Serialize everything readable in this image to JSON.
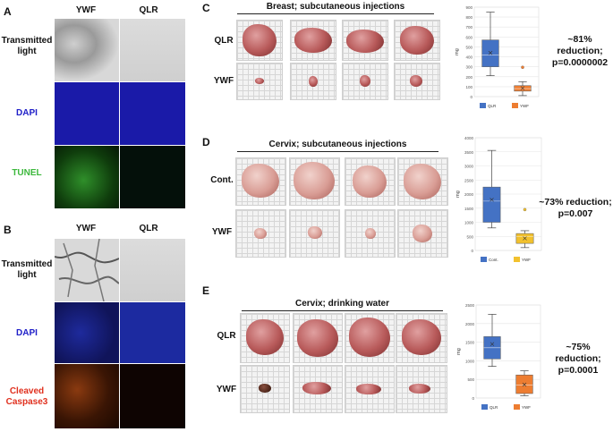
{
  "panelA": {
    "label": "A",
    "columns": [
      "YWF",
      "QLR"
    ],
    "rows": [
      {
        "label_lines": [
          "Transmitted",
          "light"
        ],
        "color": "#000000"
      },
      {
        "label_lines": [
          "DAPI"
        ],
        "color": "#2020c8"
      },
      {
        "label_lines": [
          "TUNEL"
        ],
        "color": "#3cb83c"
      }
    ]
  },
  "panelB": {
    "label": "B",
    "columns": [
      "YWF",
      "QLR"
    ],
    "rows": [
      {
        "label_lines": [
          "Transmitted",
          "light"
        ],
        "color": "#000000"
      },
      {
        "label_lines": [
          "DAPI"
        ],
        "color": "#2020c8"
      },
      {
        "label_lines": [
          "Cleaved",
          "Caspase3"
        ],
        "color": "#e0301e"
      }
    ]
  },
  "panelC": {
    "label": "C",
    "title": "Breast; subcutaneous injections",
    "row_labels": [
      "QLR",
      "YWF"
    ],
    "stat_lines": [
      "~81% reduction;",
      "p=0.0000002"
    ]
  },
  "panelD": {
    "label": "D",
    "title": "Cervix; subcutaneous injections",
    "row_labels": [
      "Cont.",
      "YWF"
    ],
    "stat_lines": [
      "~73% reduction;",
      "p=0.007"
    ]
  },
  "panelE": {
    "label": "E",
    "title": "Cervix; drinking water",
    "row_labels": [
      "QLR",
      "YWF"
    ],
    "stat_lines": [
      "~75% reduction;",
      "p=0.0001"
    ]
  },
  "chart_data": [
    {
      "type": "box",
      "ylabel": "mg",
      "ylim": [
        0,
        900
      ],
      "yticks": [
        0,
        100,
        200,
        300,
        400,
        500,
        600,
        700,
        800,
        900
      ],
      "series": [
        {
          "name": "QLR",
          "color": "#4472c4",
          "min": 210,
          "q1": 300,
          "median": 420,
          "q3": 570,
          "max": 850,
          "mean": 440,
          "outliers": []
        },
        {
          "name": "YWF",
          "color": "#ed7d31",
          "min": 10,
          "q1": 55,
          "median": 80,
          "q3": 110,
          "max": 150,
          "mean": 85,
          "outliers": [
            295
          ]
        }
      ]
    },
    {
      "type": "box",
      "ylabel": "mg",
      "ylim": [
        0,
        4000
      ],
      "yticks": [
        0,
        500,
        1000,
        1500,
        2000,
        2500,
        3000,
        3500,
        4000
      ],
      "series": [
        {
          "name": "Cont.",
          "color": "#4472c4",
          "min": 800,
          "q1": 1000,
          "median": 1750,
          "q3": 2250,
          "max": 3550,
          "mean": 1800,
          "outliers": []
        },
        {
          "name": "YWF",
          "color": "#f2c12e",
          "min": 100,
          "q1": 250,
          "median": 500,
          "q3": 600,
          "max": 700,
          "mean": 430,
          "outliers": [
            1450
          ]
        }
      ]
    },
    {
      "type": "box",
      "ylabel": "mg",
      "ylim": [
        0,
        2500
      ],
      "yticks": [
        0,
        500,
        1000,
        1500,
        2000,
        2500
      ],
      "series": [
        {
          "name": "QLR",
          "color": "#4472c4",
          "min": 850,
          "q1": 1050,
          "median": 1350,
          "q3": 1650,
          "max": 2250,
          "mean": 1450,
          "outliers": []
        },
        {
          "name": "YWF",
          "color": "#ed7d31",
          "min": 60,
          "q1": 120,
          "median": 350,
          "q3": 620,
          "max": 730,
          "mean": 360,
          "outliers": []
        }
      ]
    }
  ]
}
